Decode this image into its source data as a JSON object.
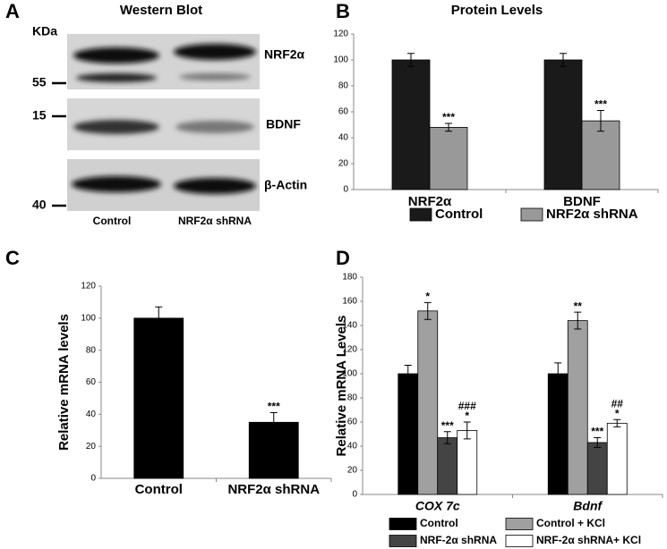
{
  "panel_labels": [
    "A",
    "B",
    "C",
    "D"
  ],
  "blot": {
    "title": "Western Blot",
    "unit": "KDa",
    "markers": [
      "55",
      "15",
      "40"
    ],
    "bands": [
      "NRF2α",
      "BDNF",
      "β-Actin"
    ],
    "lanes": [
      "Control",
      "NRF2α shRNA"
    ]
  },
  "chart_data": [
    {
      "type": "bar",
      "title": "Protein Levels",
      "categories": [
        "NRF2α",
        "BDNF"
      ],
      "series": [
        {
          "name": "Control",
          "color": "#1a1a1a",
          "values": [
            100,
            100
          ],
          "errors": [
            5,
            5
          ],
          "significance": [
            null,
            null
          ]
        },
        {
          "name": "NRF2α shRNA",
          "color": "#999999",
          "values": [
            48,
            53
          ],
          "errors": [
            3,
            8
          ],
          "significance": [
            "***",
            "***"
          ]
        }
      ],
      "ylim": [
        0,
        120
      ],
      "yticks": [
        0,
        20,
        40,
        60,
        80,
        100,
        120
      ],
      "legend": "bottom"
    },
    {
      "type": "bar",
      "y_label": "Relative mRNA levels",
      "categories": [
        "Control",
        "NRF2α shRNA"
      ],
      "values": [
        100,
        35
      ],
      "errors": [
        7,
        6
      ],
      "significance": [
        null,
        "***"
      ],
      "color": "#000000",
      "ylim": [
        0,
        120
      ],
      "yticks": [
        0,
        20,
        40,
        60,
        80,
        100,
        120
      ]
    },
    {
      "type": "bar",
      "y_label": "Relative mRNA Levels",
      "categories": [
        "COX 7c",
        "Bdnf"
      ],
      "series": [
        {
          "name": "Control",
          "color": "#000000",
          "values": [
            100,
            100
          ],
          "errors": [
            7,
            9
          ],
          "significance": [
            null,
            null
          ]
        },
        {
          "name": "Control + KCl",
          "color": "#a0a0a0",
          "values": [
            152,
            144
          ],
          "errors": [
            7,
            7
          ],
          "significance": [
            "*",
            "**"
          ]
        },
        {
          "name": "NRF-2α shRNA",
          "color": "#444444",
          "values": [
            47,
            43
          ],
          "errors": [
            5,
            4
          ],
          "significance": [
            "***",
            "***"
          ]
        },
        {
          "name": "NRF-2α  shRNA+ KCl",
          "color": "#ffffff",
          "values": [
            53,
            59
          ],
          "errors": [
            7,
            3
          ],
          "significance": [
            "*",
            "*"
          ],
          "significance_vs_kcl": [
            "###",
            "##"
          ]
        }
      ],
      "ylim": [
        0,
        180
      ],
      "yticks": [
        0,
        20,
        40,
        60,
        80,
        100,
        120,
        140,
        160,
        180
      ],
      "legend": "bottom"
    }
  ]
}
